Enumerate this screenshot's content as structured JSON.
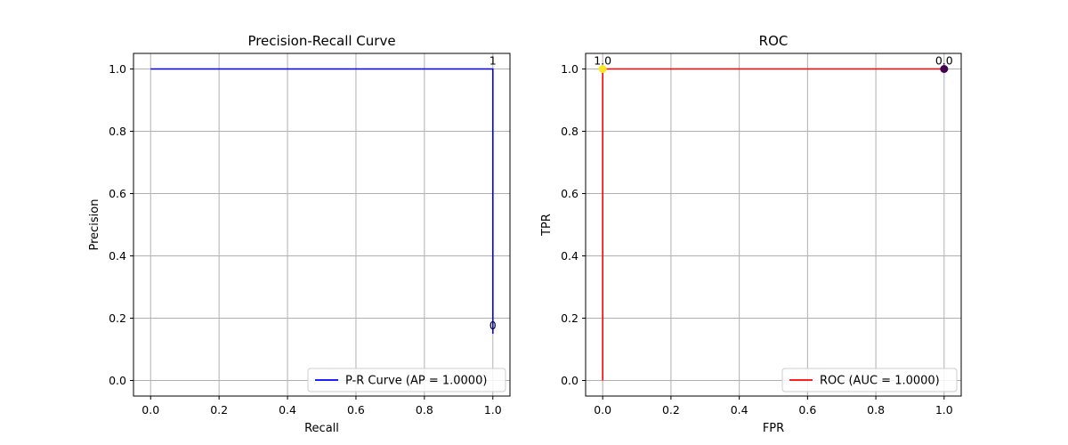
{
  "chart_data": [
    {
      "type": "line",
      "title": "Precision-Recall Curve",
      "xlabel": "Recall",
      "ylabel": "Precision",
      "xlim": [
        -0.05,
        1.05
      ],
      "ylim": [
        -0.05,
        1.05
      ],
      "xticks": [
        0.0,
        0.2,
        0.4,
        0.6,
        0.8,
        1.0
      ],
      "yticks": [
        0.0,
        0.2,
        0.4,
        0.6,
        0.8,
        1.0
      ],
      "xtick_labels": [
        "0.0",
        "0.2",
        "0.4",
        "0.6",
        "0.8",
        "1.0"
      ],
      "ytick_labels": [
        "0.0",
        "0.2",
        "0.4",
        "0.6",
        "0.8",
        "1.0"
      ],
      "grid": true,
      "legend_position": "lower-right",
      "series": [
        {
          "name": "P-R Curve (AP = 1.0000)",
          "color": "#0000ff",
          "x": [
            0.0,
            1.0,
            1.0
          ],
          "y": [
            1.0,
            1.0,
            0.15
          ]
        }
      ],
      "annotations": [
        {
          "text": "1",
          "x": 1.0,
          "y": 1.0
        },
        {
          "text": "0",
          "x": 1.0,
          "y": 0.15
        }
      ],
      "markers": []
    },
    {
      "type": "line",
      "title": "ROC",
      "xlabel": "FPR",
      "ylabel": "TPR",
      "xlim": [
        -0.05,
        1.05
      ],
      "ylim": [
        -0.05,
        1.05
      ],
      "xticks": [
        0.0,
        0.2,
        0.4,
        0.6,
        0.8,
        1.0
      ],
      "yticks": [
        0.0,
        0.2,
        0.4,
        0.6,
        0.8,
        1.0
      ],
      "xtick_labels": [
        "0.0",
        "0.2",
        "0.4",
        "0.6",
        "0.8",
        "1.0"
      ],
      "ytick_labels": [
        "0.0",
        "0.2",
        "0.4",
        "0.6",
        "0.8",
        "1.0"
      ],
      "grid": true,
      "legend_position": "lower-right",
      "series": [
        {
          "name": "ROC (AUC = 1.0000)",
          "color": "#ff0000",
          "x": [
            0.0,
            0.0,
            1.0
          ],
          "y": [
            0.0,
            1.0,
            1.0
          ]
        }
      ],
      "annotations": [
        {
          "text": "1.0",
          "x": 0.0,
          "y": 1.0
        },
        {
          "text": "0.0",
          "x": 1.0,
          "y": 1.0
        }
      ],
      "markers": [
        {
          "x": 0.0,
          "y": 1.0,
          "color": "#fde725"
        },
        {
          "x": 1.0,
          "y": 1.0,
          "color": "#440154"
        }
      ]
    }
  ]
}
